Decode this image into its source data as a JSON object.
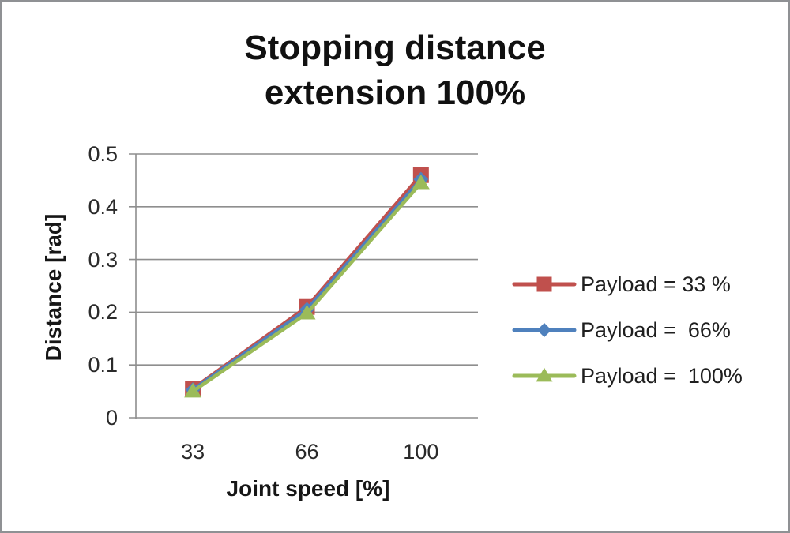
{
  "title": {
    "line1": "Stopping distance",
    "line2": "extension 100%"
  },
  "y_axis": {
    "title": "Distance [rad]",
    "ticks": [
      "0.5",
      "0.4",
      "0.3",
      "0.2",
      "0.1",
      "0"
    ]
  },
  "x_axis": {
    "title": "Joint speed [%]",
    "ticks": [
      "33",
      "66",
      "100"
    ]
  },
  "legend": {
    "position": "right",
    "items": [
      {
        "label": "Payload = 33 %",
        "color": "#c0504d",
        "marker": "square"
      },
      {
        "label": "Payload =  66%",
        "color": "#4f81bd",
        "marker": "diamond"
      },
      {
        "label": "Payload =  100%",
        "color": "#9bbb59",
        "marker": "triangle"
      }
    ]
  },
  "chart_data": {
    "type": "line",
    "title": "Stopping distance extension 100%",
    "xlabel": "Joint speed [%]",
    "ylabel": "Distance [rad]",
    "categories": [
      33,
      66,
      100
    ],
    "series": [
      {
        "name": "Payload = 33 %",
        "color": "#c0504d",
        "marker": "square",
        "values": [
          0.055,
          0.21,
          0.46
        ]
      },
      {
        "name": "Payload =  66%",
        "color": "#4f81bd",
        "marker": "diamond",
        "values": [
          0.053,
          0.205,
          0.452
        ]
      },
      {
        "name": "Payload =  100%",
        "color": "#9bbb59",
        "marker": "triangle",
        "values": [
          0.05,
          0.198,
          0.445
        ]
      }
    ],
    "ylim": [
      0,
      0.5
    ],
    "y_tick_step": 0.1,
    "grid": true,
    "legend_position": "right"
  },
  "colors": {
    "grid": "#8e8e8e",
    "axis": "#8e8e8e",
    "frame_border": "#8f9194",
    "tick_text": "#2a2a2a",
    "title_text": "#111111"
  }
}
